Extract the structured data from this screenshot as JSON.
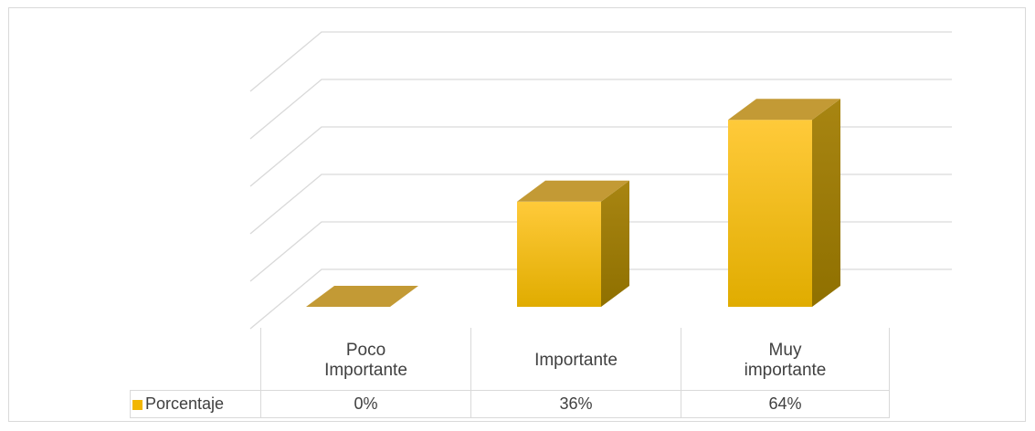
{
  "chart_data": {
    "type": "bar",
    "style": "3d-column",
    "categories": [
      "Poco\nImportante",
      "Importante",
      "Muy\nimportante"
    ],
    "series": [
      {
        "name": "Porcentaje",
        "values": [
          0,
          36,
          64
        ],
        "labels": [
          "0%",
          "36%",
          "64%"
        ],
        "color": "#f2b600"
      }
    ],
    "title": "",
    "xlabel": "",
    "ylabel": "",
    "ylim": [
      0,
      100
    ],
    "grid": true,
    "data_table": true,
    "colors": {
      "front_top": "#ffca3a",
      "front_bottom": "#e0ac00",
      "side": "#a07f0a",
      "top": "#c39a35",
      "grid": "#d9d9d9"
    }
  }
}
